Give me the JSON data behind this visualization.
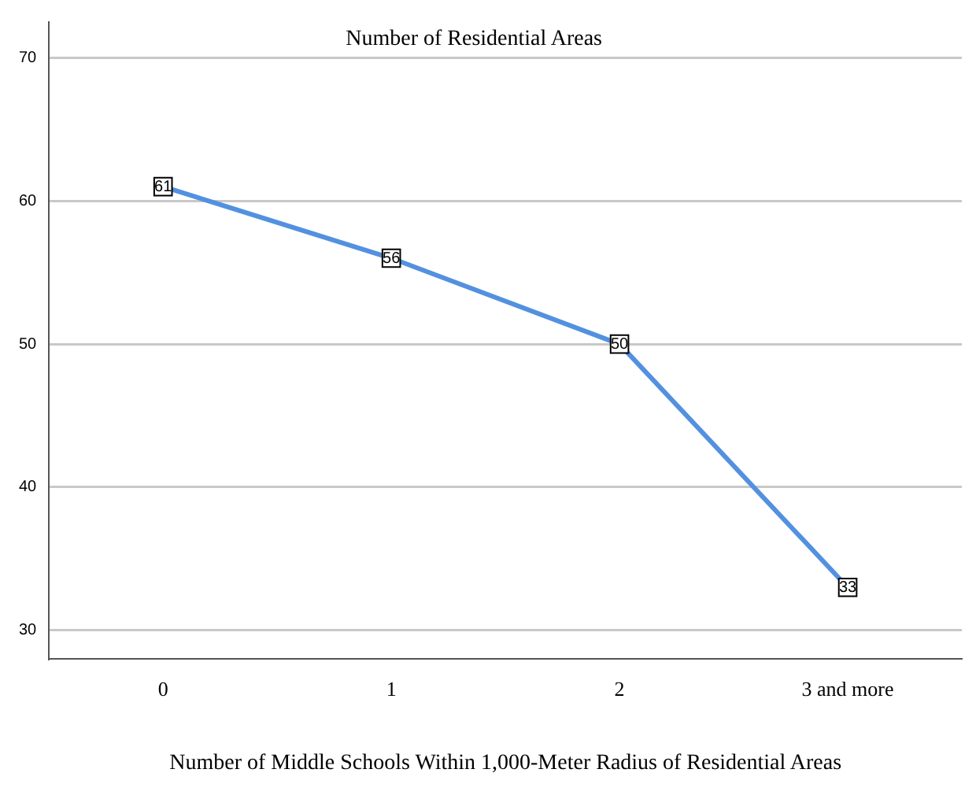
{
  "chart_data": {
    "type": "line",
    "title": "Number of Residential Areas",
    "xlabel": "Number of Middle Schools Within 1,000-Meter Radius of Residential Areas",
    "categories": [
      "0",
      "1",
      "2",
      "3 and more"
    ],
    "series": [
      {
        "color": "#5391e0",
        "values": [
          61,
          56,
          50,
          33
        ]
      }
    ],
    "ylim": [
      28,
      72.5
    ],
    "yticks": [
      30,
      40,
      50,
      60,
      70
    ],
    "grid": "y",
    "legend": false,
    "marker": "square",
    "line_style": "solid",
    "data_labels": true
  }
}
